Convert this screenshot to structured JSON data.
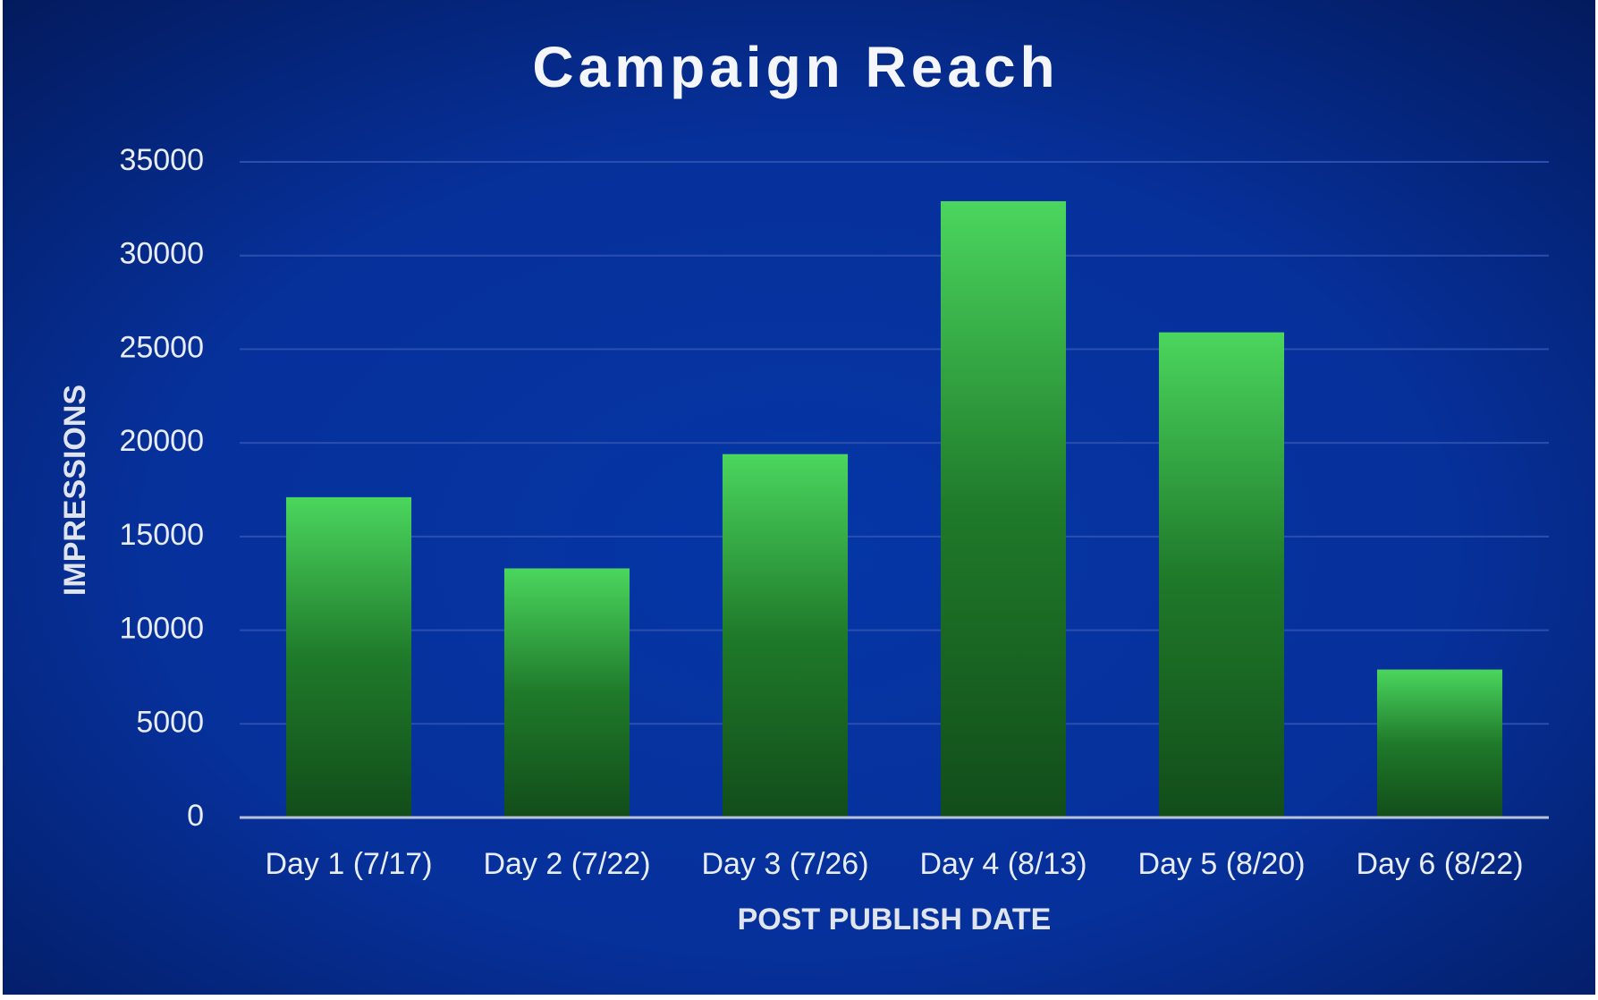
{
  "chart_data": {
    "type": "bar",
    "title": "Campaign Reach",
    "x_label": "POST PUBLISH DATE",
    "y_label": "IMPRESSIONS",
    "categories": [
      "Day 1 (7/17)",
      "Day 2 (7/22)",
      "Day 3 (7/26)",
      "Day 4 (8/13)",
      "Day 5 (8/20)",
      "Day 6 (8/22)"
    ],
    "values": [
      17100,
      13300,
      19400,
      32900,
      25900,
      7900
    ],
    "color": "#2fa83f",
    "ylim": [
      0,
      35000
    ],
    "yticks": [
      0,
      5000,
      10000,
      15000,
      20000,
      25000,
      30000,
      35000
    ],
    "grid": true
  }
}
